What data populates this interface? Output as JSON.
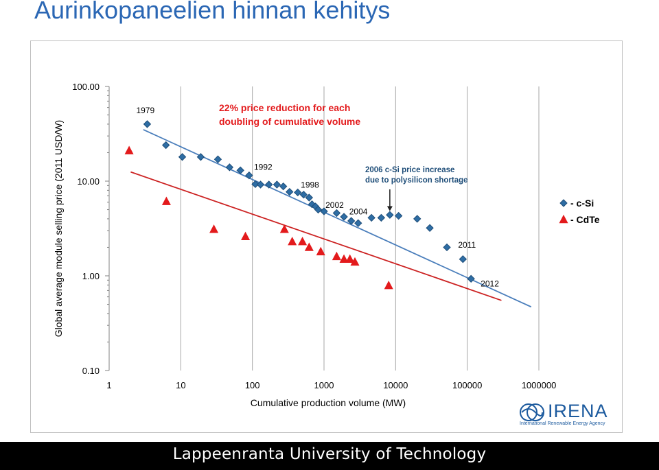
{
  "slide": {
    "title": "Aurinkopaneelien hinnan kehitys",
    "footer": "Lappeenranta University of Technology"
  },
  "logo": {
    "name": "IRENA",
    "subtitle": "International Renewable Energy Agency",
    "color": "#1c5a9e"
  },
  "colors": {
    "csi": "#1f4e79",
    "csi_fill": "#2e6da4",
    "cdte": "#e31a1c",
    "trend_csi": "#4a7ebb",
    "trend_cdte": "#cc2222",
    "title": "#2b67b4"
  },
  "chart_data": {
    "type": "scatter",
    "x_scale": "log",
    "y_scale": "log",
    "xlim": [
      1,
      1000000
    ],
    "ylim": [
      0.1,
      100
    ],
    "xlabel": "Cumulative production volume (MW)",
    "ylabel": "Global average module selling price (2011 USD/W)",
    "x_ticks": [
      "1",
      "10",
      "100",
      "1000",
      "10000",
      "100000",
      "1000000"
    ],
    "y_ticks": [
      "0.10",
      "1.00",
      "10.00",
      "100.00"
    ],
    "grid": "vertical major",
    "legend_position": "right",
    "series": [
      {
        "name": "- c-Si",
        "marker": "diamond",
        "points": [
          [
            3.4,
            40
          ],
          [
            6.2,
            24
          ],
          [
            10.5,
            18
          ],
          [
            19,
            18
          ],
          [
            33,
            17
          ],
          [
            48,
            14
          ],
          [
            68,
            13
          ],
          [
            90,
            11.5
          ],
          [
            110,
            9.3
          ],
          [
            130,
            9.2
          ],
          [
            170,
            9.2
          ],
          [
            220,
            9.2
          ],
          [
            270,
            8.8
          ],
          [
            330,
            7.7
          ],
          [
            430,
            7.6
          ],
          [
            520,
            7.2
          ],
          [
            620,
            6.7
          ],
          [
            680,
            5.7
          ],
          [
            760,
            5.4
          ],
          [
            830,
            5.0
          ],
          [
            1000,
            4.8
          ],
          [
            1500,
            4.6
          ],
          [
            1900,
            4.2
          ],
          [
            2400,
            3.8
          ],
          [
            3000,
            3.6
          ],
          [
            4600,
            4.1
          ],
          [
            6300,
            4.1
          ],
          [
            8300,
            4.4
          ],
          [
            11000,
            4.3
          ],
          [
            20000,
            4.0
          ],
          [
            30000,
            3.2
          ],
          [
            52000,
            2.0
          ],
          [
            87000,
            1.5
          ],
          [
            113000,
            0.93
          ]
        ],
        "trend": [
          [
            3,
            35
          ],
          [
            780000,
            0.47
          ]
        ]
      },
      {
        "name": "- CdTe",
        "marker": "triangle",
        "points": [
          [
            1.9,
            21
          ],
          [
            6.3,
            6.1
          ],
          [
            29,
            3.1
          ],
          [
            80,
            2.6
          ],
          [
            280,
            3.1
          ],
          [
            360,
            2.3
          ],
          [
            500,
            2.3
          ],
          [
            620,
            2.0
          ],
          [
            900,
            1.8
          ],
          [
            1500,
            1.6
          ],
          [
            1900,
            1.5
          ],
          [
            2300,
            1.5
          ],
          [
            2700,
            1.4
          ],
          [
            8000,
            0.79
          ]
        ],
        "trend": [
          [
            2,
            12.5
          ],
          [
            300000,
            0.55
          ]
        ]
      }
    ],
    "annotations": [
      {
        "text": "1979",
        "x": 3.4,
        "y": 40
      },
      {
        "text": "1992",
        "x": 110,
        "y": 11.5
      },
      {
        "text": "1998",
        "x": 380,
        "y": 8.8
      },
      {
        "text": "2002",
        "x": 1250,
        "y": 5.5
      },
      {
        "text": "2004",
        "x": 3500,
        "y": 4.1
      },
      {
        "text": "2011",
        "x": 95000,
        "y": 1.6
      },
      {
        "text": "2012",
        "x": 113000,
        "y": 0.93
      },
      {
        "text": "22% price reduction for each",
        "x": 300,
        "y": 35,
        "style": "red-title"
      },
      {
        "text": "doubling of cumulative volume",
        "x": 300,
        "y": 35,
        "style": "red-title"
      },
      {
        "text": "2006 c-Si price increase",
        "x": 8300,
        "y": 13,
        "style": "blue-note"
      },
      {
        "text": "due to polysilicon shortage",
        "x": 8300,
        "y": 13,
        "style": "blue-note"
      }
    ]
  }
}
